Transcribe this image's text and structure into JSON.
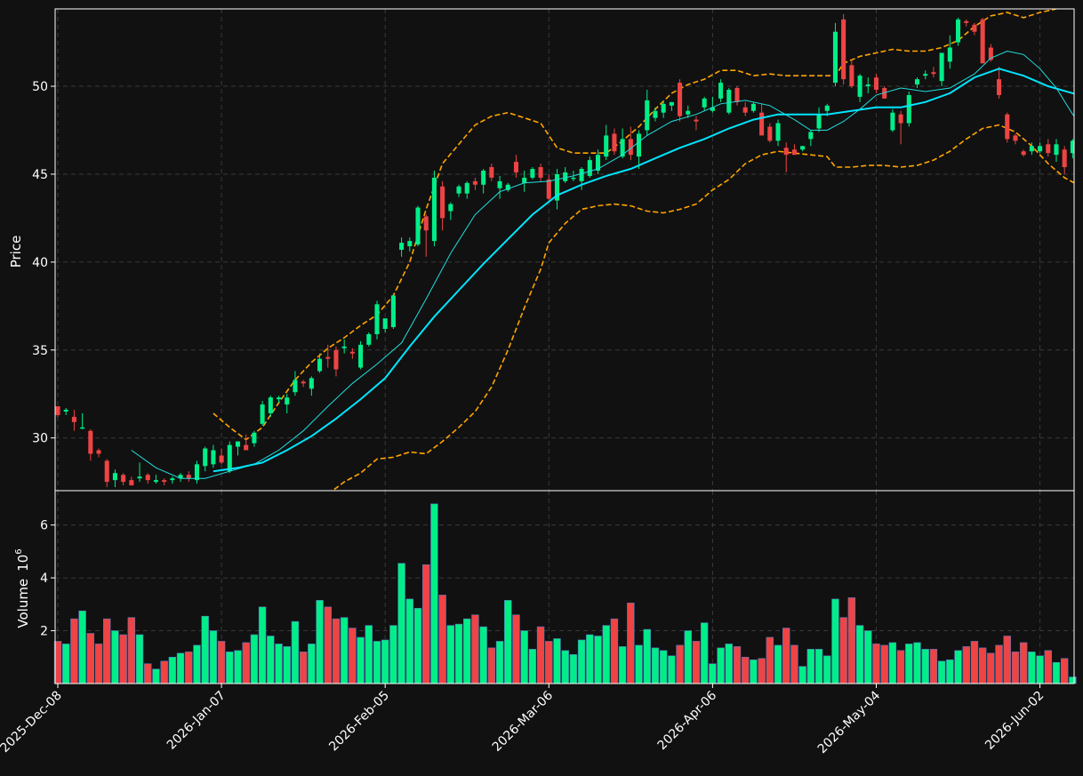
{
  "colors": {
    "background": "#111111",
    "up": "#00ee88",
    "down": "#ee4444",
    "sma_fast": "#22dddd",
    "sma_slow": "#00e5ff",
    "bollinger": "#ffa500",
    "axis": "#ffffff",
    "grid": "#3a3a3a"
  },
  "chart_data": {
    "type": "candlestick",
    "price_panel": {
      "ylabel": "Price",
      "ylim": [
        27.0,
        54.4
      ],
      "yticks": [
        30,
        35,
        40,
        45,
        50
      ],
      "grid": true
    },
    "volume_panel": {
      "ylabel": "Volume",
      "scale_label": "10",
      "scale_exp": "6",
      "ylim": [
        0,
        7.3
      ],
      "yticks": [
        2,
        4,
        6
      ],
      "grid": true
    },
    "x_tick_labels": [
      {
        "index": 0,
        "label": "2025-Dec-08"
      },
      {
        "index": 20,
        "label": "2026-Jan-07"
      },
      {
        "index": 40,
        "label": "2026-Feb-05"
      },
      {
        "index": 60,
        "label": "2026-Mar-06"
      },
      {
        "index": 80,
        "label": "2026-Apr-06"
      },
      {
        "index": 100,
        "label": "2026-May-04"
      },
      {
        "index": 120,
        "label": "2026-Jun-02"
      }
    ],
    "ohlcv": [
      [
        31.8,
        31.8,
        31.2,
        31.3,
        1.6
      ],
      [
        31.5,
        31.7,
        31.3,
        31.6,
        1.5
      ],
      [
        31.2,
        31.6,
        30.4,
        30.9,
        2.45
      ],
      [
        30.6,
        31.4,
        30.5,
        30.6,
        2.75
      ],
      [
        30.4,
        30.5,
        28.7,
        29.1,
        1.9
      ],
      [
        29.3,
        29.4,
        28.9,
        29.1,
        1.5
      ],
      [
        28.7,
        28.8,
        27.2,
        27.5,
        2.45
      ],
      [
        27.6,
        28.2,
        27.2,
        28.0,
        2.0
      ],
      [
        27.9,
        28.0,
        27.3,
        27.5,
        1.85
      ],
      [
        27.6,
        27.8,
        27.4,
        27.3,
        2.5
      ],
      [
        27.7,
        28.6,
        27.5,
        27.8,
        1.85
      ],
      [
        27.9,
        28.0,
        27.4,
        27.6,
        0.75
      ],
      [
        27.5,
        27.9,
        27.4,
        27.6,
        0.55
      ],
      [
        27.6,
        27.7,
        27.3,
        27.5,
        0.85
      ],
      [
        27.6,
        27.8,
        27.4,
        27.7,
        1.0
      ],
      [
        27.7,
        28.0,
        27.5,
        27.9,
        1.15
      ],
      [
        27.9,
        28.1,
        27.5,
        27.7,
        1.2
      ],
      [
        27.6,
        28.7,
        27.4,
        28.5,
        1.45
      ],
      [
        28.4,
        29.5,
        28.1,
        29.4,
        2.55
      ],
      [
        28.5,
        29.6,
        28.3,
        29.3,
        2.0
      ],
      [
        29.0,
        29.4,
        28.5,
        28.6,
        1.6
      ],
      [
        28.1,
        29.8,
        28.0,
        29.6,
        1.2
      ],
      [
        29.5,
        29.8,
        29.0,
        29.8,
        1.25
      ],
      [
        29.6,
        30.2,
        29.3,
        29.3,
        1.55
      ],
      [
        29.7,
        30.4,
        29.5,
        30.3,
        1.85
      ],
      [
        30.8,
        32.1,
        30.7,
        31.9,
        2.9
      ],
      [
        31.4,
        32.4,
        31.2,
        32.3,
        1.8
      ],
      [
        32.2,
        32.4,
        32.0,
        32.3,
        1.5
      ],
      [
        31.9,
        32.5,
        31.4,
        32.3,
        1.4
      ],
      [
        32.6,
        33.8,
        32.4,
        33.3,
        2.35
      ],
      [
        33.2,
        33.3,
        32.9,
        33.1,
        1.2
      ],
      [
        32.8,
        33.5,
        32.4,
        33.4,
        1.5
      ],
      [
        33.8,
        34.8,
        33.7,
        34.5,
        3.15
      ],
      [
        34.6,
        35.3,
        34.0,
        34.5,
        2.9
      ],
      [
        35.0,
        35.2,
        33.5,
        33.9,
        2.45
      ],
      [
        35.1,
        35.6,
        34.8,
        35.2,
        2.5
      ],
      [
        34.9,
        35.1,
        34.5,
        34.8,
        2.1
      ],
      [
        34.0,
        35.5,
        33.9,
        35.3,
        1.75
      ],
      [
        35.3,
        36.0,
        35.2,
        35.9,
        2.2
      ],
      [
        35.9,
        37.8,
        35.6,
        37.6,
        1.6
      ],
      [
        36.2,
        36.7,
        36.0,
        36.8,
        1.65
      ],
      [
        36.3,
        38.2,
        36.2,
        38.1,
        2.2
      ],
      [
        40.7,
        41.4,
        40.3,
        41.1,
        4.55
      ],
      [
        40.9,
        41.4,
        40.6,
        41.2,
        3.2
      ],
      [
        41.0,
        43.2,
        40.9,
        43.1,
        2.85
      ],
      [
        42.6,
        42.7,
        40.3,
        41.8,
        4.5
      ],
      [
        41.2,
        45.2,
        40.9,
        44.8,
        6.8
      ],
      [
        44.3,
        44.6,
        41.8,
        42.5,
        3.35
      ],
      [
        42.9,
        43.4,
        42.4,
        43.3,
        2.2
      ],
      [
        43.9,
        44.4,
        43.7,
        44.3,
        2.25
      ],
      [
        43.9,
        44.6,
        43.6,
        44.5,
        2.45
      ],
      [
        44.6,
        44.8,
        44.1,
        44.4,
        2.6
      ],
      [
        44.4,
        45.3,
        43.9,
        45.2,
        2.15
      ],
      [
        45.4,
        45.6,
        44.6,
        44.8,
        1.35
      ],
      [
        44.2,
        44.9,
        43.6,
        44.6,
        1.6
      ],
      [
        44.1,
        44.5,
        44.0,
        44.4,
        3.15
      ],
      [
        45.7,
        46.1,
        44.8,
        45.1,
        2.6
      ],
      [
        44.5,
        45.2,
        44.0,
        44.8,
        2.0
      ],
      [
        44.8,
        45.4,
        44.7,
        45.3,
        1.3
      ],
      [
        45.4,
        45.6,
        44.6,
        44.8,
        2.15
      ],
      [
        44.7,
        45.0,
        43.5,
        43.6,
        1.6
      ],
      [
        43.5,
        45.3,
        43.0,
        45.0,
        1.7
      ],
      [
        44.6,
        45.4,
        44.5,
        45.1,
        1.25
      ],
      [
        44.8,
        45.2,
        44.6,
        44.8,
        1.1
      ],
      [
        44.6,
        45.4,
        44.1,
        45.3,
        1.65
      ],
      [
        44.9,
        46.0,
        44.8,
        45.8,
        1.85
      ],
      [
        45.2,
        46.4,
        45.0,
        46.1,
        1.8
      ],
      [
        46.0,
        47.8,
        45.8,
        47.2,
        2.2
      ],
      [
        47.3,
        47.6,
        46.1,
        46.3,
        2.45
      ],
      [
        46.0,
        47.6,
        45.9,
        47.0,
        1.4
      ],
      [
        47.0,
        47.7,
        45.8,
        46.1,
        3.05
      ],
      [
        46.0,
        47.5,
        45.3,
        47.3,
        1.45
      ],
      [
        47.5,
        49.8,
        47.2,
        49.2,
        2.05
      ],
      [
        48.2,
        48.8,
        48.0,
        48.6,
        1.35
      ],
      [
        48.5,
        49.2,
        48.2,
        49.0,
        1.25
      ],
      [
        48.9,
        49.1,
        48.6,
        49.1,
        1.05
      ],
      [
        50.2,
        50.4,
        48.0,
        48.3,
        1.45
      ],
      [
        48.4,
        48.9,
        48.2,
        48.6,
        2.0
      ],
      [
        48.1,
        48.3,
        47.5,
        48.0,
        1.6
      ],
      [
        48.8,
        49.4,
        48.6,
        49.3,
        2.3
      ],
      [
        48.6,
        49.4,
        48.5,
        48.8,
        0.75
      ],
      [
        49.3,
        50.4,
        49.1,
        50.2,
        1.35
      ],
      [
        48.5,
        49.9,
        48.4,
        49.8,
        1.5
      ],
      [
        49.9,
        50.0,
        48.9,
        49.1,
        1.4
      ],
      [
        48.8,
        49.1,
        48.3,
        48.5,
        1.0
      ],
      [
        48.6,
        49.1,
        48.5,
        49.0,
        0.9
      ],
      [
        48.5,
        49.0,
        47.4,
        47.2,
        0.95
      ],
      [
        47.7,
        47.9,
        46.8,
        46.9,
        1.75
      ],
      [
        46.9,
        48.1,
        46.6,
        47.9,
        1.45
      ],
      [
        46.5,
        46.8,
        45.1,
        46.1,
        2.1
      ],
      [
        46.4,
        46.7,
        46.1,
        46.1,
        1.45
      ],
      [
        46.4,
        46.6,
        46.3,
        46.6,
        0.65
      ],
      [
        47.0,
        47.5,
        46.6,
        47.4,
        1.3
      ],
      [
        47.6,
        48.8,
        47.4,
        48.4,
        1.3
      ],
      [
        48.6,
        49.0,
        48.3,
        48.9,
        1.05
      ],
      [
        50.2,
        53.6,
        50.0,
        53.1,
        3.2
      ],
      [
        53.8,
        54.1,
        50.1,
        50.4,
        2.5
      ],
      [
        51.2,
        51.5,
        49.9,
        50.0,
        3.25
      ],
      [
        49.4,
        50.7,
        49.1,
        50.6,
        2.2
      ],
      [
        50.0,
        50.5,
        49.6,
        50.1,
        2.0
      ],
      [
        50.5,
        50.7,
        49.6,
        49.8,
        1.5
      ],
      [
        49.9,
        50.0,
        49.3,
        49.3,
        1.45
      ],
      [
        47.5,
        48.7,
        47.4,
        48.5,
        1.55
      ],
      [
        48.4,
        48.6,
        46.7,
        47.9,
        1.25
      ],
      [
        47.9,
        49.7,
        47.7,
        49.5,
        1.5
      ],
      [
        50.1,
        50.5,
        49.9,
        50.4,
        1.55
      ],
      [
        50.6,
        50.9,
        50.4,
        50.7,
        1.3
      ],
      [
        50.8,
        51.1,
        50.5,
        50.7,
        1.3
      ],
      [
        50.3,
        51.4,
        50.0,
        51.9,
        0.85
      ],
      [
        51.4,
        52.9,
        51.0,
        52.2,
        0.9
      ],
      [
        52.5,
        53.9,
        52.3,
        53.8,
        1.25
      ],
      [
        53.7,
        53.8,
        53.4,
        53.6,
        1.4
      ],
      [
        53.5,
        53.6,
        52.9,
        53.1,
        1.6
      ],
      [
        53.8,
        53.9,
        51.5,
        51.3,
        1.35
      ],
      [
        52.2,
        52.4,
        51.4,
        51.5,
        1.15
      ],
      [
        50.4,
        51.1,
        49.3,
        49.5,
        1.45
      ],
      [
        48.4,
        48.5,
        46.8,
        47.0,
        1.8
      ],
      [
        47.2,
        47.3,
        46.7,
        46.9,
        1.2
      ],
      [
        46.3,
        46.4,
        46.0,
        46.1,
        1.55
      ],
      [
        46.3,
        46.8,
        46.1,
        46.6,
        1.2
      ],
      [
        46.3,
        46.8,
        46.2,
        46.6,
        1.05
      ],
      [
        46.7,
        47.0,
        46.0,
        46.2,
        1.25
      ],
      [
        46.1,
        47.0,
        45.7,
        46.7,
        0.8
      ],
      [
        46.4,
        46.6,
        45.0,
        45.4,
        0.95
      ],
      [
        46.2,
        47.0,
        45.9,
        46.9,
        0.25
      ]
    ],
    "sma_fast": [
      [
        9,
        29.3
      ],
      [
        12,
        28.3
      ],
      [
        15,
        27.7
      ],
      [
        18,
        27.7
      ],
      [
        21,
        28.1
      ],
      [
        24,
        28.5
      ],
      [
        27,
        29.3
      ],
      [
        30,
        30.4
      ],
      [
        33,
        31.8
      ],
      [
        36,
        33.1
      ],
      [
        39,
        34.2
      ],
      [
        42,
        35.4
      ],
      [
        45,
        37.9
      ],
      [
        48,
        40.5
      ],
      [
        51,
        42.7
      ],
      [
        54,
        44.0
      ],
      [
        57,
        44.5
      ],
      [
        60,
        44.6
      ],
      [
        63,
        44.9
      ],
      [
        66,
        45.3
      ],
      [
        69,
        46.1
      ],
      [
        72,
        47.2
      ],
      [
        75,
        48.0
      ],
      [
        78,
        48.4
      ],
      [
        81,
        49.0
      ],
      [
        84,
        49.2
      ],
      [
        87,
        48.9
      ],
      [
        90,
        48.1
      ],
      [
        92,
        47.5
      ],
      [
        94,
        47.5
      ],
      [
        96,
        48.0
      ],
      [
        98,
        48.7
      ],
      [
        100,
        49.5
      ],
      [
        103,
        49.9
      ],
      [
        106,
        49.7
      ],
      [
        109,
        49.9
      ],
      [
        112,
        50.7
      ],
      [
        114,
        51.6
      ],
      [
        116,
        52.0
      ],
      [
        118,
        51.8
      ],
      [
        120,
        51.0
      ],
      [
        122,
        49.9
      ],
      [
        124,
        48.4
      ],
      [
        126,
        47.3
      ],
      [
        127,
        46.8
      ]
    ],
    "sma_slow": [
      [
        19,
        28.1
      ],
      [
        22,
        28.3
      ],
      [
        25,
        28.6
      ],
      [
        28,
        29.3
      ],
      [
        31,
        30.1
      ],
      [
        34,
        31.1
      ],
      [
        37,
        32.2
      ],
      [
        40,
        33.4
      ],
      [
        43,
        35.2
      ],
      [
        46,
        36.9
      ],
      [
        49,
        38.4
      ],
      [
        52,
        39.9
      ],
      [
        55,
        41.3
      ],
      [
        58,
        42.7
      ],
      [
        61,
        43.8
      ],
      [
        64,
        44.4
      ],
      [
        67,
        44.9
      ],
      [
        70,
        45.3
      ],
      [
        73,
        45.9
      ],
      [
        76,
        46.5
      ],
      [
        79,
        47.0
      ],
      [
        82,
        47.6
      ],
      [
        85,
        48.1
      ],
      [
        88,
        48.4
      ],
      [
        91,
        48.4
      ],
      [
        94,
        48.4
      ],
      [
        97,
        48.6
      ],
      [
        100,
        48.8
      ],
      [
        103,
        48.8
      ],
      [
        106,
        49.1
      ],
      [
        109,
        49.6
      ],
      [
        112,
        50.5
      ],
      [
        115,
        51.0
      ],
      [
        118,
        50.6
      ],
      [
        121,
        50.0
      ],
      [
        124,
        49.6
      ],
      [
        126,
        49.4
      ],
      [
        127,
        49.3
      ]
    ],
    "bb_upper": [
      [
        19,
        31.4
      ],
      [
        21,
        30.6
      ],
      [
        23,
        29.9
      ],
      [
        25,
        30.6
      ],
      [
        27,
        32.0
      ],
      [
        29,
        33.3
      ],
      [
        31,
        34.3
      ],
      [
        33,
        35.1
      ],
      [
        35,
        35.7
      ],
      [
        37,
        36.4
      ],
      [
        39,
        37.0
      ],
      [
        41,
        38.1
      ],
      [
        43,
        40.0
      ],
      [
        45,
        43.0
      ],
      [
        47,
        45.6
      ],
      [
        49,
        46.7
      ],
      [
        51,
        47.8
      ],
      [
        53,
        48.3
      ],
      [
        55,
        48.5
      ],
      [
        57,
        48.2
      ],
      [
        59,
        47.9
      ],
      [
        60,
        47.2
      ],
      [
        61,
        46.5
      ],
      [
        63,
        46.2
      ],
      [
        65,
        46.2
      ],
      [
        67,
        46.2
      ],
      [
        69,
        46.9
      ],
      [
        71,
        47.7
      ],
      [
        73,
        48.7
      ],
      [
        75,
        49.6
      ],
      [
        77,
        50.1
      ],
      [
        79,
        50.4
      ],
      [
        81,
        50.9
      ],
      [
        83,
        50.9
      ],
      [
        85,
        50.6
      ],
      [
        87,
        50.7
      ],
      [
        89,
        50.6
      ],
      [
        91,
        50.6
      ],
      [
        93,
        50.6
      ],
      [
        95,
        50.6
      ],
      [
        96,
        51.3
      ],
      [
        98,
        51.7
      ],
      [
        100,
        51.9
      ],
      [
        102,
        52.1
      ],
      [
        104,
        52.0
      ],
      [
        106,
        52.0
      ],
      [
        108,
        52.2
      ],
      [
        110,
        52.6
      ],
      [
        112,
        53.4
      ],
      [
        114,
        54.0
      ],
      [
        116,
        54.2
      ],
      [
        118,
        53.9
      ],
      [
        120,
        54.2
      ],
      [
        122,
        54.4
      ]
    ],
    "bb_lower": [
      [
        33,
        26.8
      ],
      [
        35,
        27.5
      ],
      [
        37,
        28.0
      ],
      [
        39,
        28.8
      ],
      [
        41,
        28.9
      ],
      [
        43,
        29.2
      ],
      [
        45,
        29.1
      ],
      [
        47,
        29.8
      ],
      [
        49,
        30.6
      ],
      [
        51,
        31.5
      ],
      [
        53,
        32.9
      ],
      [
        55,
        35.0
      ],
      [
        57,
        37.4
      ],
      [
        59,
        39.6
      ],
      [
        60,
        41.1
      ],
      [
        62,
        42.2
      ],
      [
        64,
        43.0
      ],
      [
        66,
        43.2
      ],
      [
        68,
        43.3
      ],
      [
        70,
        43.2
      ],
      [
        72,
        42.9
      ],
      [
        74,
        42.8
      ],
      [
        76,
        43.0
      ],
      [
        78,
        43.3
      ],
      [
        80,
        44.1
      ],
      [
        82,
        44.7
      ],
      [
        84,
        45.6
      ],
      [
        86,
        46.1
      ],
      [
        88,
        46.3
      ],
      [
        90,
        46.2
      ],
      [
        92,
        46.1
      ],
      [
        94,
        46.0
      ],
      [
        95,
        45.4
      ],
      [
        97,
        45.4
      ],
      [
        99,
        45.5
      ],
      [
        101,
        45.5
      ],
      [
        103,
        45.4
      ],
      [
        105,
        45.5
      ],
      [
        107,
        45.8
      ],
      [
        109,
        46.3
      ],
      [
        111,
        47.0
      ],
      [
        113,
        47.6
      ],
      [
        115,
        47.8
      ],
      [
        117,
        47.4
      ],
      [
        119,
        46.6
      ],
      [
        121,
        45.6
      ],
      [
        123,
        44.8
      ],
      [
        125,
        44.3
      ],
      [
        127,
        43.7
      ]
    ]
  }
}
